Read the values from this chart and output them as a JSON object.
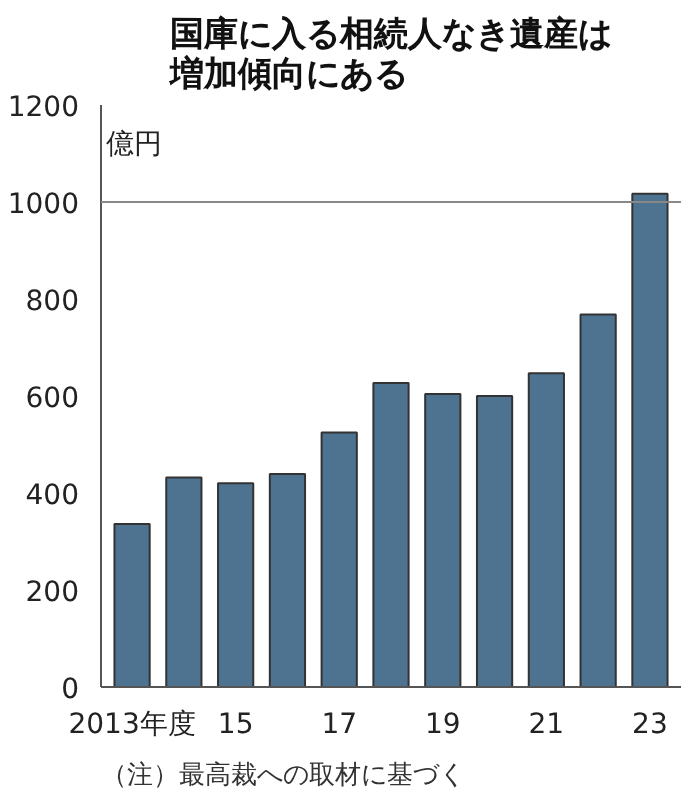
{
  "chart_data": {
    "type": "bar",
    "title": "国庫に入る相続人なき遺産は増加傾向にある",
    "ylabel": "億円",
    "categories": [
      "2013年度",
      null,
      "15",
      null,
      "17",
      null,
      "19",
      null,
      "21",
      null,
      "23"
    ],
    "values": [
      336,
      432,
      420,
      439,
      525,
      627,
      604,
      600,
      647,
      768,
      1017
    ],
    "color": "#4e7391",
    "ylim": [
      0,
      1200
    ],
    "yticks": [
      0,
      200,
      400,
      600,
      800,
      1000,
      1200
    ],
    "grid": false,
    "ref_lines": [
      {
        "axis": "y",
        "value": 1000,
        "label": null,
        "color": "#888888"
      }
    ],
    "annotations": [
      "（注）最高裁への取材に基づく"
    ]
  }
}
